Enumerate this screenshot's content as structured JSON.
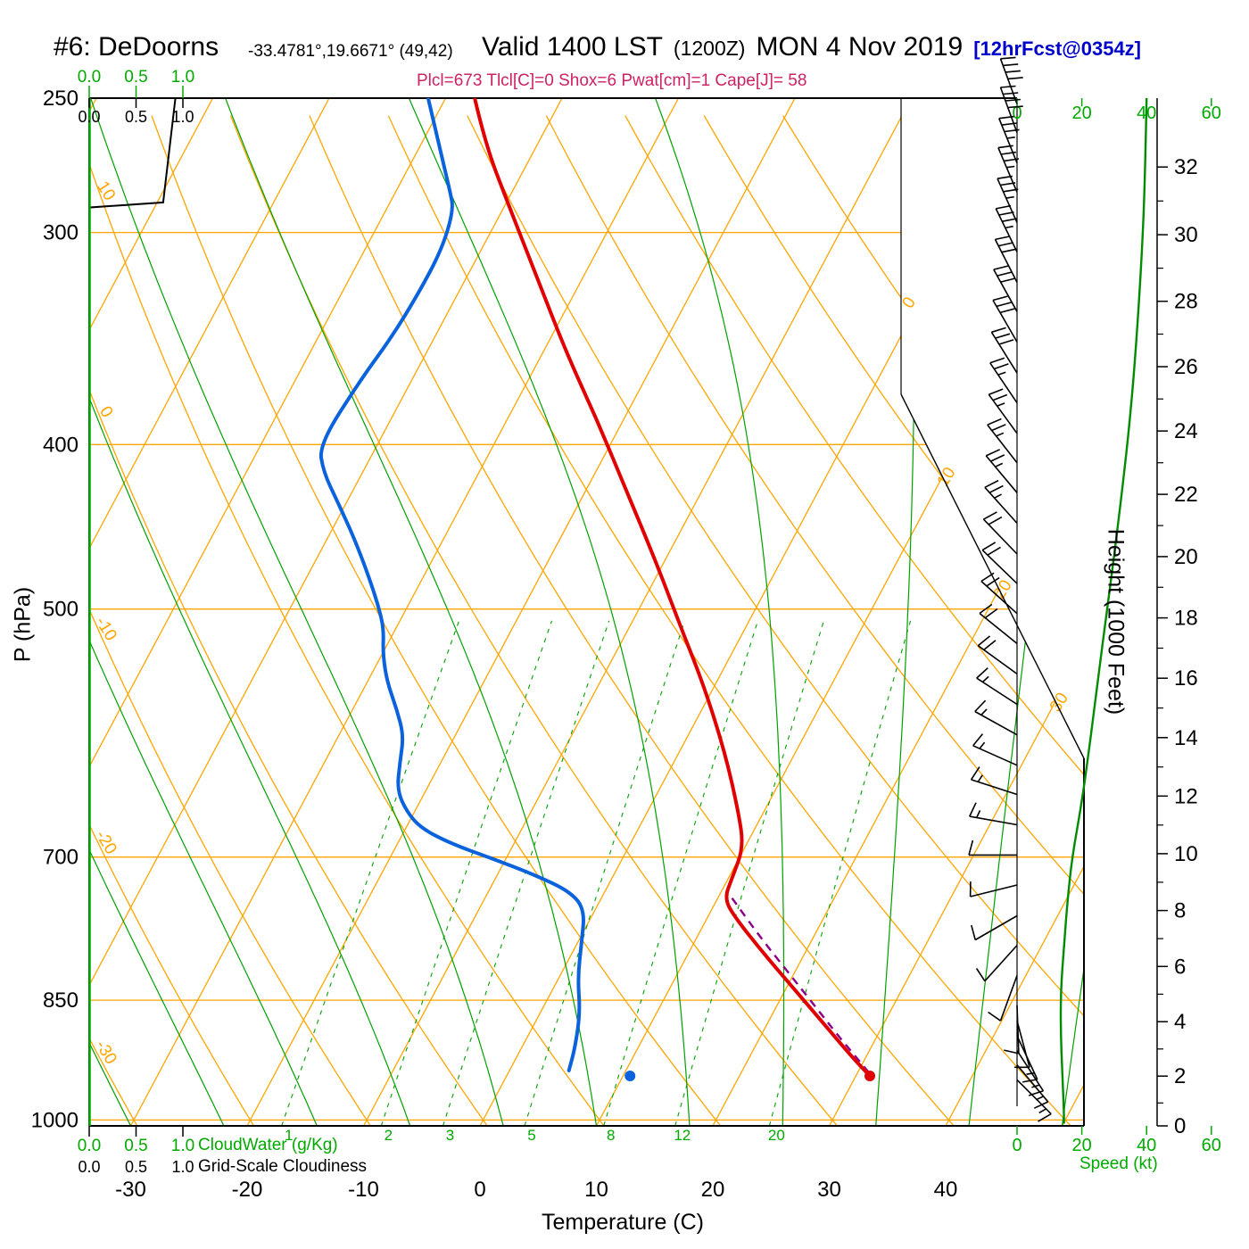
{
  "header": {
    "station_id": "#6: DeDoorns",
    "coords": "-33.4781°,19.6671° (49,42)",
    "valid_main": "Valid 1400 LST",
    "valid_zulu": "(1200Z)",
    "valid_date": "MON 4 Nov 2019",
    "forecast_tag": "[12hrFcst@0354z]",
    "indices_line": "Plcl=673 Tlcl[C]=0 Shox=6 Pwat[cm]=1 Cape[J]= 58"
  },
  "axis_labels": {
    "pressure": "P (hPa)",
    "temperature": "Temperature (C)",
    "height": "Height (1000 Feet)",
    "speed": "Speed (kt)",
    "cloudwater": "CloudWater (g/Kg)",
    "cloudiness": "Grid-Scale Cloudiness"
  },
  "scales": {
    "pressure_ticks": [
      250,
      300,
      400,
      500,
      700,
      850,
      1000
    ],
    "temp_ticks": [
      -30,
      -20,
      -10,
      0,
      10,
      20,
      30,
      40
    ],
    "height_ticks": [
      0,
      2,
      4,
      6,
      8,
      10,
      12,
      14,
      16,
      18,
      20,
      22,
      24,
      26,
      28,
      30,
      32
    ],
    "speed_ticks": [
      0,
      20,
      40,
      60
    ],
    "cloud_fraction_ticks": [
      "0.0",
      "0.5",
      "1.0"
    ]
  },
  "chart_data": {
    "type": "skewt-logp",
    "pressure_top_hpa": 250,
    "pressure_bottom_hpa": 1008,
    "isotherms_c": {
      "min": -90,
      "max": 50,
      "step": 10
    },
    "dry_adiabats_theta_c": {
      "min": -40,
      "max": 100,
      "step": 10
    },
    "dry_adiabat_edge_labels": [
      10,
      0,
      -10,
      -20,
      -30
    ],
    "isotherm_edge_labels": [
      0,
      10,
      20,
      30
    ],
    "moist_adiabats_start_c": [
      -30,
      -22,
      -14,
      -6,
      2,
      10,
      18,
      26,
      34,
      42,
      50
    ],
    "mixing_ratio_g_kg": [
      1,
      2,
      3,
      5,
      8,
      12,
      20
    ],
    "temperature_profile": [
      {
        "p": 250,
        "t": -47.5
      },
      {
        "p": 266,
        "t": -44.5
      },
      {
        "p": 289,
        "t": -39.7
      },
      {
        "p": 318,
        "t": -34.1
      },
      {
        "p": 353,
        "t": -28.0
      },
      {
        "p": 386,
        "t": -22.4
      },
      {
        "p": 423,
        "t": -16.9
      },
      {
        "p": 469,
        "t": -10.7
      },
      {
        "p": 514,
        "t": -5.4
      },
      {
        "p": 556,
        "t": -0.8
      },
      {
        "p": 608,
        "t": 4.0
      },
      {
        "p": 658,
        "t": 7.8
      },
      {
        "p": 691,
        "t": 9.9
      },
      {
        "p": 720,
        "t": 10.3
      },
      {
        "p": 741,
        "t": 10.6
      },
      {
        "p": 761,
        "t": 12.5
      },
      {
        "p": 798,
        "t": 16.5
      },
      {
        "p": 838,
        "t": 20.8
      },
      {
        "p": 880,
        "t": 25.1
      },
      {
        "p": 918,
        "t": 28.8
      },
      {
        "p": 940,
        "t": 31.0
      }
    ],
    "dewpoint_profile": [
      {
        "p": 250,
        "t": -51.5
      },
      {
        "p": 266,
        "t": -48.5
      },
      {
        "p": 284,
        "t": -45.3
      },
      {
        "p": 291,
        "t": -44.2
      },
      {
        "p": 307,
        "t": -43.4
      },
      {
        "p": 326,
        "t": -43.4
      },
      {
        "p": 346,
        "t": -43.7
      },
      {
        "p": 366,
        "t": -44.4
      },
      {
        "p": 400,
        "t": -45.0
      },
      {
        "p": 415,
        "t": -43.4
      },
      {
        "p": 433,
        "t": -40.7
      },
      {
        "p": 452,
        "t": -38.0
      },
      {
        "p": 475,
        "t": -35.1
      },
      {
        "p": 500,
        "t": -32.3
      },
      {
        "p": 514,
        "t": -31.0
      },
      {
        "p": 532,
        "t": -29.9
      },
      {
        "p": 552,
        "t": -28.3
      },
      {
        "p": 573,
        "t": -26.2
      },
      {
        "p": 594,
        "t": -24.4
      },
      {
        "p": 616,
        "t": -23.5
      },
      {
        "p": 639,
        "t": -22.5
      },
      {
        "p": 658,
        "t": -20.7
      },
      {
        "p": 673,
        "t": -18.7
      },
      {
        "p": 687,
        "t": -15.5
      },
      {
        "p": 701,
        "t": -11.3
      },
      {
        "p": 717,
        "t": -6.8
      },
      {
        "p": 734,
        "t": -2.9
      },
      {
        "p": 752,
        "t": -0.9
      },
      {
        "p": 785,
        "t": 0.3
      },
      {
        "p": 824,
        "t": 1.6
      },
      {
        "p": 864,
        "t": 3.4
      },
      {
        "p": 907,
        "t": 4.6
      },
      {
        "p": 935,
        "t": 5.1
      }
    ],
    "parcel_path": [
      {
        "p": 938,
        "t": 31.0
      },
      {
        "p": 900,
        "t": 27.4
      },
      {
        "p": 860,
        "t": 23.6
      },
      {
        "p": 820,
        "t": 19.6
      },
      {
        "p": 780,
        "t": 15.4
      },
      {
        "p": 738,
        "t": 11.0
      }
    ],
    "surface_temp_marker": {
      "p": 942,
      "t": 31.2
    },
    "surface_dewpoint_marker": {
      "p": 942,
      "t": 10.6
    },
    "wind_profile": [
      {
        "p": 252,
        "dir": 340,
        "kt": 40
      },
      {
        "p": 262,
        "dir": 340,
        "kt": 38
      },
      {
        "p": 273,
        "dir": 338,
        "kt": 37
      },
      {
        "p": 284,
        "dir": 337,
        "kt": 36
      },
      {
        "p": 296,
        "dir": 336,
        "kt": 35
      },
      {
        "p": 308,
        "dir": 334,
        "kt": 34
      },
      {
        "p": 321,
        "dir": 333,
        "kt": 32
      },
      {
        "p": 334,
        "dir": 331,
        "kt": 31
      },
      {
        "p": 348,
        "dir": 330,
        "kt": 30
      },
      {
        "p": 363,
        "dir": 328,
        "kt": 28
      },
      {
        "p": 378,
        "dir": 326,
        "kt": 27
      },
      {
        "p": 394,
        "dir": 324,
        "kt": 26
      },
      {
        "p": 410,
        "dir": 322,
        "kt": 25
      },
      {
        "p": 427,
        "dir": 320,
        "kt": 24
      },
      {
        "p": 445,
        "dir": 318,
        "kt": 23
      },
      {
        "p": 464,
        "dir": 316,
        "kt": 22
      },
      {
        "p": 483,
        "dir": 314,
        "kt": 21
      },
      {
        "p": 503,
        "dir": 312,
        "kt": 20
      },
      {
        "p": 524,
        "dir": 309,
        "kt": 19
      },
      {
        "p": 546,
        "dir": 306,
        "kt": 18
      },
      {
        "p": 569,
        "dir": 303,
        "kt": 17
      },
      {
        "p": 593,
        "dir": 299,
        "kt": 16
      },
      {
        "p": 618,
        "dir": 294,
        "kt": 15
      },
      {
        "p": 643,
        "dir": 288,
        "kt": 14
      },
      {
        "p": 670,
        "dir": 280,
        "kt": 13
      },
      {
        "p": 698,
        "dir": 270,
        "kt": 12
      },
      {
        "p": 727,
        "dir": 256,
        "kt": 11
      },
      {
        "p": 758,
        "dir": 240,
        "kt": 10
      },
      {
        "p": 789,
        "dir": 222,
        "kt": 10
      },
      {
        "p": 822,
        "dir": 200,
        "kt": 10
      },
      {
        "p": 856,
        "dir": 178,
        "kt": 11
      },
      {
        "p": 874,
        "dir": 165,
        "kt": 12
      },
      {
        "p": 892,
        "dir": 155,
        "kt": 13
      },
      {
        "p": 910,
        "dir": 147,
        "kt": 13
      },
      {
        "p": 928,
        "dir": 140,
        "kt": 14
      },
      {
        "p": 947,
        "dir": 135,
        "kt": 14
      }
    ],
    "speed_profile_kt": [
      {
        "p": 250,
        "kt": 40
      },
      {
        "p": 280,
        "kt": 39.5
      },
      {
        "p": 310,
        "kt": 38.5
      },
      {
        "p": 345,
        "kt": 37
      },
      {
        "p": 385,
        "kt": 35
      },
      {
        "p": 425,
        "kt": 32.5
      },
      {
        "p": 465,
        "kt": 30
      },
      {
        "p": 505,
        "kt": 27.5
      },
      {
        "p": 550,
        "kt": 25
      },
      {
        "p": 600,
        "kt": 22.5
      },
      {
        "p": 650,
        "kt": 20
      },
      {
        "p": 700,
        "kt": 17
      },
      {
        "p": 745,
        "kt": 15.5
      },
      {
        "p": 790,
        "kt": 14.5
      },
      {
        "p": 840,
        "kt": 13.5
      },
      {
        "p": 890,
        "kt": 13.5
      },
      {
        "p": 940,
        "kt": 14
      },
      {
        "p": 990,
        "kt": 14.5
      },
      {
        "p": 1005,
        "kt": 14.5
      }
    ],
    "cloudiness_profile": [
      {
        "p": 1008,
        "v": 0
      },
      {
        "p": 290,
        "v": 0
      },
      {
        "p": 288,
        "v": 0.79
      },
      {
        "p": 250,
        "v": 0.92
      }
    ],
    "cloudwater_profile": [
      {
        "p": 1008,
        "v": 0
      },
      {
        "p": 250,
        "v": 0
      }
    ]
  },
  "colors": {
    "isotherm_adiabat": "#FFA500",
    "moist_lines": "#00A000",
    "temperature": "#E10000",
    "dewpoint": "#0A62DC",
    "parcel": "#8B008B",
    "wind": "#000000",
    "speed_curve": "#008C00",
    "accent_text_green": "#00AA00",
    "title_blue": "#0000CC",
    "indices_magenta": "#CC2266",
    "frame": "#000000"
  }
}
